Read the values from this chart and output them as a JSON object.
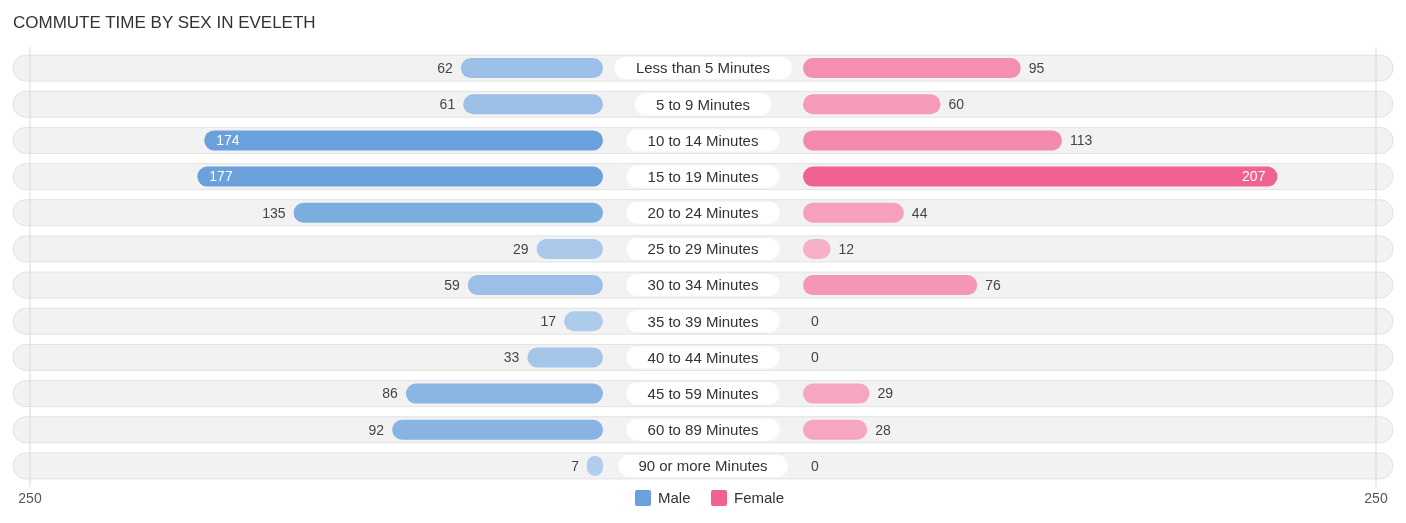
{
  "chart_data": [
    {
      "type": "bar",
      "orientation": "horizontal",
      "title": "COMMUTE TIME BY SEX IN EVELETH",
      "categories": [
        "Less than 5 Minutes",
        "5 to 9 Minutes",
        "10 to 14 Minutes",
        "15 to 19 Minutes",
        "20 to 24 Minutes",
        "25 to 29 Minutes",
        "30 to 34 Minutes",
        "35 to 39 Minutes",
        "40 to 44 Minutes",
        "45 to 59 Minutes",
        "60 to 89 Minutes",
        "90 or more Minutes"
      ],
      "series": [
        {
          "name": "Male",
          "color": "#6aa0dc",
          "colors": [
            "#9bbfe6",
            "#9bbfe6",
            "#6aa0dc",
            "#6aa0dc",
            "#7badde",
            "#a9c8ea",
            "#9bbfe6",
            "#adcbeb",
            "#a6c6e9",
            "#8bb5e2",
            "#89b3e2",
            "#b0cdec"
          ],
          "values": [
            62,
            61,
            174,
            177,
            135,
            29,
            59,
            17,
            33,
            86,
            92,
            7
          ]
        }
      ],
      "xlim": [
        250,
        0
      ],
      "xticks": [
        250
      ],
      "data_labels": true,
      "legend": "bottom"
    },
    {
      "type": "bar",
      "orientation": "horizontal",
      "series": [
        {
          "name": "Female",
          "color": "#f06292",
          "colors": [
            "#f48fb0",
            "#f59ab8",
            "#f38aad",
            "#f06292",
            "#f6a0bd",
            "#f8afc8",
            "#f596b5",
            "#f8b3ca",
            "#f8b3ca",
            "#f7a6c2",
            "#f7a6c2",
            "#f8b3ca"
          ],
          "values": [
            95,
            60,
            113,
            207,
            44,
            12,
            76,
            0,
            0,
            29,
            28,
            0
          ]
        }
      ],
      "xlim": [
        0,
        250
      ],
      "xticks": [
        250
      ],
      "data_labels": true,
      "legend": "bottom",
      "tick_labels": "x"
    }
  ]
}
